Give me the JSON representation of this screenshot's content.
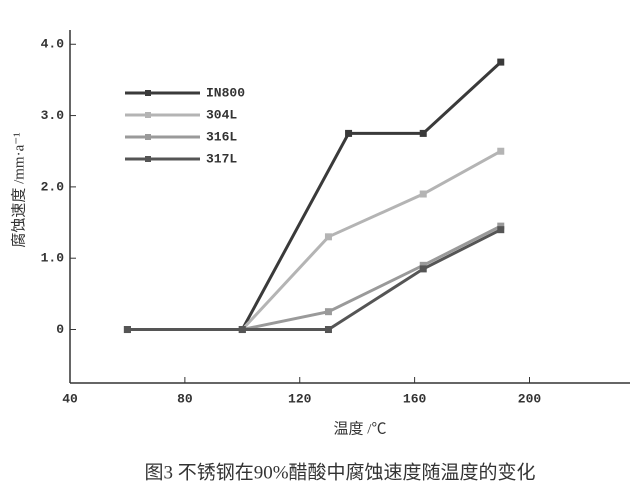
{
  "chart_data": {
    "type": "line",
    "caption": "图3  不锈钢在90%醋酸中腐蚀速度随温度的变化",
    "x_label": "温度 /℃",
    "y_label": "腐蚀速度 /mm·a⁻¹",
    "xlim": [
      40,
      235
    ],
    "xticks": [
      40,
      80,
      120,
      160,
      200
    ],
    "ylim": [
      -0.75,
      4.2
    ],
    "yticks": [
      0,
      {
        "value": 1,
        "label": "1.0"
      },
      {
        "value": 2,
        "label": "2.0"
      },
      {
        "value": 3,
        "label": "3.0"
      },
      {
        "value": 4,
        "label": "4.0"
      }
    ],
    "legend": "upper-left",
    "series": [
      {
        "name": "IN800",
        "color": "#3a3a3a",
        "x": [
          60,
          100,
          137,
          163,
          190
        ],
        "values": [
          0,
          0,
          2.75,
          2.75,
          3.75
        ]
      },
      {
        "name": "304L",
        "color": "#b4b4b4",
        "x": [
          60,
          100,
          130,
          163,
          190
        ],
        "values": [
          0,
          0,
          1.3,
          1.9,
          2.5
        ]
      },
      {
        "name": "316L",
        "color": "#9a9a9a",
        "x": [
          60,
          100,
          130,
          163,
          190
        ],
        "values": [
          0,
          0,
          0.25,
          0.9,
          1.45
        ]
      },
      {
        "name": "317L",
        "color": "#555555",
        "x": [
          60,
          100,
          130,
          163,
          190
        ],
        "values": [
          0,
          0,
          0,
          0.85,
          1.4
        ]
      }
    ]
  }
}
